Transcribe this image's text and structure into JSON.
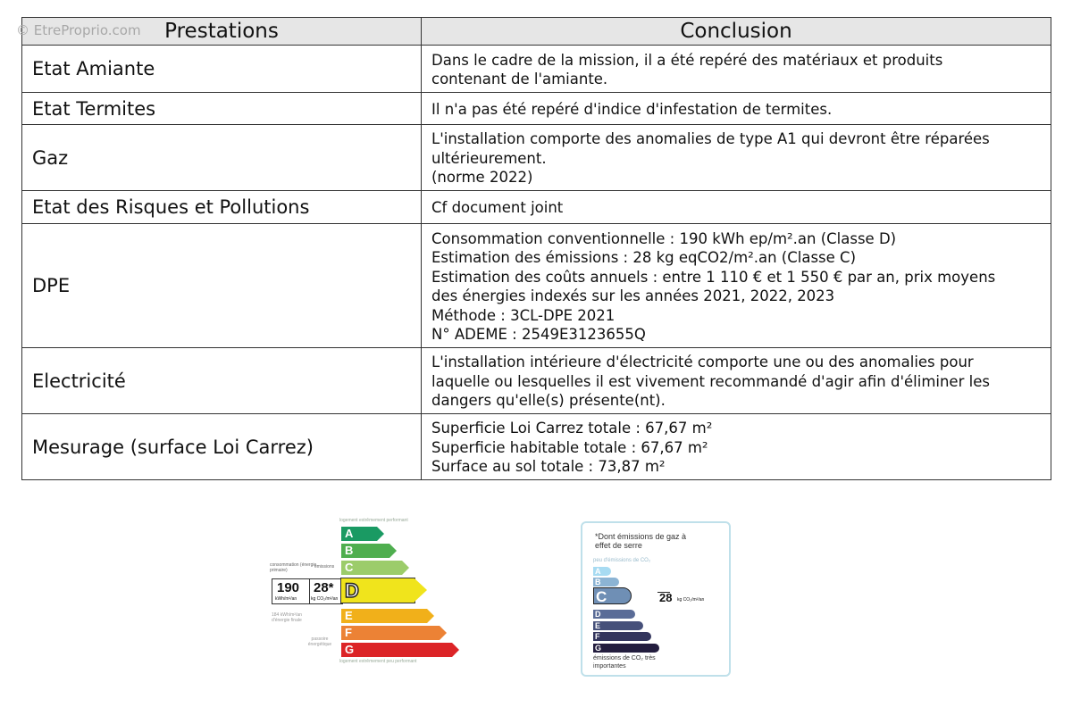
{
  "watermark": "© EtreProprio.com",
  "table": {
    "headers": [
      "Prestations",
      "Conclusion"
    ],
    "rows": [
      {
        "prestation": "Etat Amiante",
        "conclusion": [
          "Dans le cadre de la mission, il a été repéré des matériaux et produits",
          "contenant de l'amiante."
        ]
      },
      {
        "prestation": "Etat Termites",
        "conclusion": [
          "Il n'a pas été repéré d'indice d'infestation de termites."
        ]
      },
      {
        "prestation": "Gaz",
        "conclusion": [
          "L'installation comporte des anomalies de type A1 qui devront être réparées",
          "ultérieurement.",
          "(norme 2022)"
        ]
      },
      {
        "prestation": "Etat des Risques et Pollutions",
        "conclusion": [
          "Cf document joint"
        ]
      },
      {
        "prestation": "DPE",
        "conclusion": [
          "Consommation conventionnelle : 190 kWh ep/m².an (Classe D)",
          "Estimation des émissions : 28 kg eqCO2/m².an (Classe C)",
          "Estimation des coûts annuels : entre 1 110 € et 1 550 € par an, prix moyens",
          "des énergies indexés sur les années 2021, 2022, 2023",
          "Méthode : 3CL-DPE 2021",
          "N° ADEME : 2549E3123655Q"
        ]
      },
      {
        "prestation": "Electricité",
        "conclusion": [
          "L'installation intérieure d'électricité comporte une ou des anomalies pour",
          "laquelle ou lesquelles il est vivement recommandé d'agir afin d'éliminer les",
          "dangers qu'elle(s) présente(nt)."
        ]
      },
      {
        "prestation": "Mesurage (surface Loi Carrez)",
        "conclusion": [
          "Superficie Loi Carrez totale : 67,67 m²",
          "Superficie habitable totale : 67,67 m²",
          "Surface au sol totale : 73,87 m²"
        ]
      }
    ]
  },
  "energy_label": {
    "top_text": "logement extrêmement performant",
    "bottom_text": "logement extrêmement peu performant",
    "consumption_label": "consommation (énergie primaire)",
    "emissions_label": "émissions",
    "consumption_value": "190",
    "consumption_unit": "kWh/m²/an",
    "emissions_value": "28*",
    "emissions_unit": "kg CO₂/m²/an",
    "final_energy": "184 kWh/m²/an d'énergie finale",
    "passoire": "passoire énergétique",
    "current_class": "D",
    "classes": [
      {
        "letter": "A",
        "color": "#1a9a63"
      },
      {
        "letter": "B",
        "color": "#4fae4f"
      },
      {
        "letter": "C",
        "color": "#9ccc6a"
      },
      {
        "letter": "D",
        "color": "#f0e41c"
      },
      {
        "letter": "E",
        "color": "#f1b01a"
      },
      {
        "letter": "F",
        "color": "#ec8235"
      },
      {
        "letter": "G",
        "color": "#dc2427"
      }
    ]
  },
  "ges_label": {
    "note": "*Dont émissions de gaz à effet de serre",
    "top_text": "peu d'émissions de CO₂",
    "bottom_text": "émissions de CO₂ très importantes",
    "value": "28",
    "unit": "kg CO₂/m²/an",
    "current_class": "C",
    "classes": [
      {
        "letter": "A",
        "color": "#a7dbf2"
      },
      {
        "letter": "B",
        "color": "#8cb4d4"
      },
      {
        "letter": "C",
        "color": "#6f8fb5"
      },
      {
        "letter": "D",
        "color": "#5a6c97"
      },
      {
        "letter": "E",
        "color": "#46507a"
      },
      {
        "letter": "F",
        "color": "#33355d"
      },
      {
        "letter": "G",
        "color": "#231d3e"
      }
    ]
  }
}
